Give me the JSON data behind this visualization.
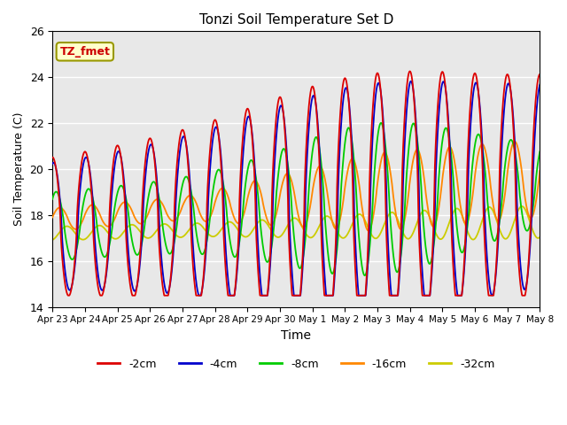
{
  "title": "Tonzi Soil Temperature Set D",
  "xlabel": "Time",
  "ylabel": "Soil Temperature (C)",
  "ylim": [
    14,
    26
  ],
  "xlim": [
    0,
    15
  ],
  "background_color": "#e8e8e8",
  "annotation_text": "TZ_fmet",
  "annotation_color": "#cc0000",
  "annotation_bg": "#ffffcc",
  "annotation_border": "#999900",
  "series_colors": [
    "#dd0000",
    "#0000cc",
    "#00cc00",
    "#ff8800",
    "#cccc00"
  ],
  "series_labels": [
    "-2cm",
    "-4cm",
    "-8cm",
    "-16cm",
    "-32cm"
  ],
  "xtick_labels": [
    "Apr 23",
    "Apr 24",
    "Apr 25",
    "Apr 26",
    "Apr 27",
    "Apr 28",
    "Apr 29",
    "Apr 30",
    "May 1",
    "May 2",
    "May 3",
    "May 4",
    "May 5",
    "May 6",
    "May 7",
    "May 8"
  ],
  "xtick_positions": [
    0,
    1,
    2,
    3,
    4,
    5,
    6,
    7,
    8,
    9,
    10,
    11,
    12,
    13,
    14,
    15
  ],
  "ytick_positions": [
    14,
    16,
    18,
    20,
    22,
    24,
    26
  ],
  "ytick_labels": [
    "14",
    "16",
    "18",
    "20",
    "22",
    "24",
    "26"
  ]
}
